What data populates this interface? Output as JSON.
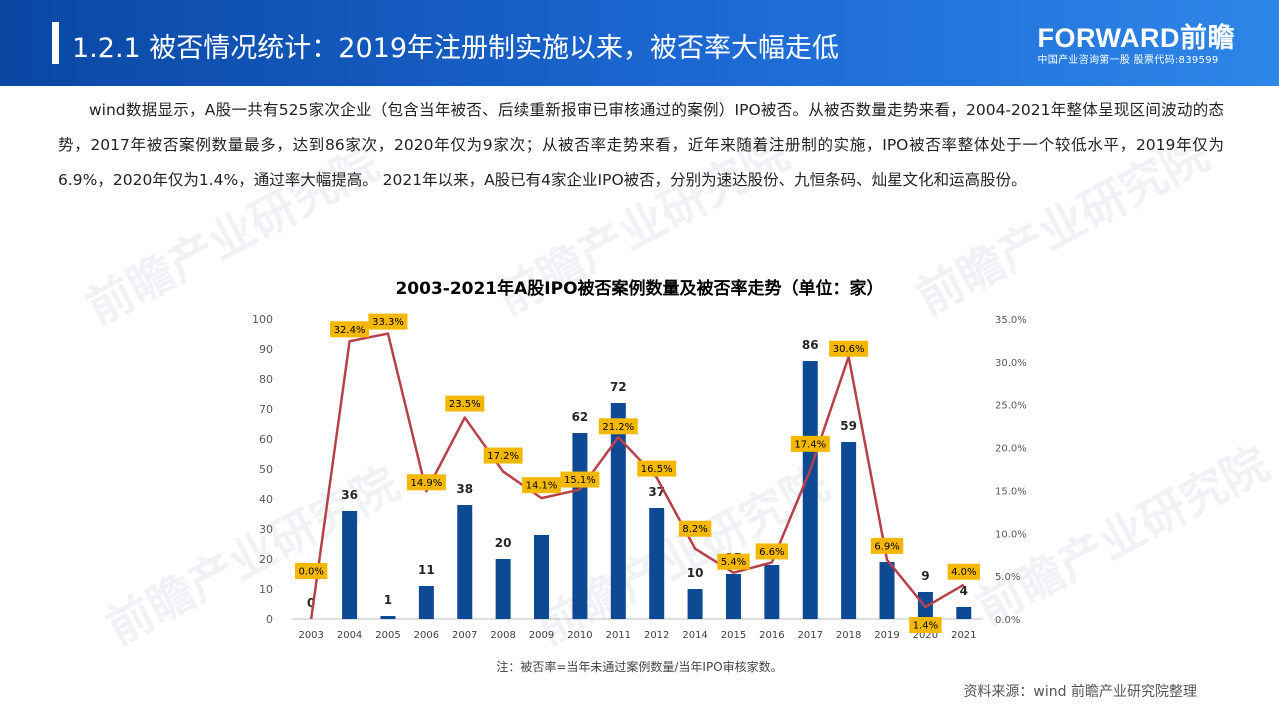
{
  "header": {
    "title": "1.2.1 被否情况统计：2019年注册制实施以来，被否率大幅走低",
    "logo_main": "FORWARD前瞻",
    "logo_sub": "中国产业咨询第一股 股票代码:839599"
  },
  "paragraph": "wind数据显示，A股一共有525家次企业（包含当年被否、后续重新报审已审核通过的案例）IPO被否。从被否数量走势来看，2004-2021年整体呈现区间波动的态势，2017年被否案例数量最多，达到86家次，2020年仅为9家次；从被否率走势来看，近年来随着注册制的实施，IPO被否率整体处于一个较低水平，2019年仅为6.9%，2020年仅为1.4%，通过率大幅提高。 2021年以来，A股已有4家企业IPO被否，分别为速达股份、九恒条码、灿星文化和运高股份。",
  "watermark": "前瞻产业研究院",
  "chart_data": {
    "type": "bar",
    "title": "2003-2021年A股IPO被否案例数量及被否率走势（单位：家）",
    "categories": [
      "2003",
      "2004",
      "2005",
      "2006",
      "2007",
      "2008",
      "2009",
      "2010",
      "2011",
      "2012",
      "2014",
      "2015",
      "2016",
      "2017",
      "2018",
      "2019",
      "2020",
      "2021"
    ],
    "series": [
      {
        "type": "bar",
        "values": [
          0,
          36,
          1,
          11,
          38,
          20,
          28,
          62,
          72,
          37,
          10,
          15,
          18,
          86,
          59,
          19,
          9,
          4
        ],
        "labels": [
          "0",
          "36",
          "1",
          "11",
          "38",
          "20",
          "",
          "62",
          "72",
          "37",
          "10",
          "15",
          "18",
          "86",
          "59",
          "19",
          "9",
          "4"
        ],
        "axis": "left"
      },
      {
        "type": "line",
        "values": [
          0.0,
          32.4,
          33.3,
          14.9,
          23.5,
          17.2,
          14.1,
          15.1,
          21.2,
          16.5,
          8.2,
          5.4,
          6.6,
          17.4,
          30.6,
          6.9,
          1.4,
          4.0
        ],
        "labels": [
          "0.0%",
          "32.4%",
          "33.3%",
          "14.9%",
          "23.5%",
          "17.2%",
          "14.1%",
          "15.1%",
          "21.2%",
          "16.5%",
          "8.2%",
          "5.4%",
          "6.6%",
          "17.4%",
          "30.6%",
          "6.9%",
          "1.4%",
          "4.0%"
        ],
        "axis": "right"
      }
    ],
    "ylim_left": [
      0,
      100
    ],
    "yticks_left": [
      "0",
      "10",
      "20",
      "30",
      "40",
      "50",
      "60",
      "70",
      "80",
      "90",
      "100"
    ],
    "ylim_right": [
      0,
      35
    ],
    "yticks_right": [
      "0.0%",
      "5.0%",
      "10.0%",
      "15.0%",
      "20.0%",
      "25.0%",
      "30.0%",
      "35.0%"
    ],
    "grid": false,
    "colors": {
      "bar": "#0e4a93",
      "line": "#b8404a",
      "label_bg": "#f5b800"
    }
  },
  "note": "注：被否率=当年未通过案例数量/当年IPO审核家数。",
  "source": "资料来源：wind 前瞻产业研究院整理"
}
